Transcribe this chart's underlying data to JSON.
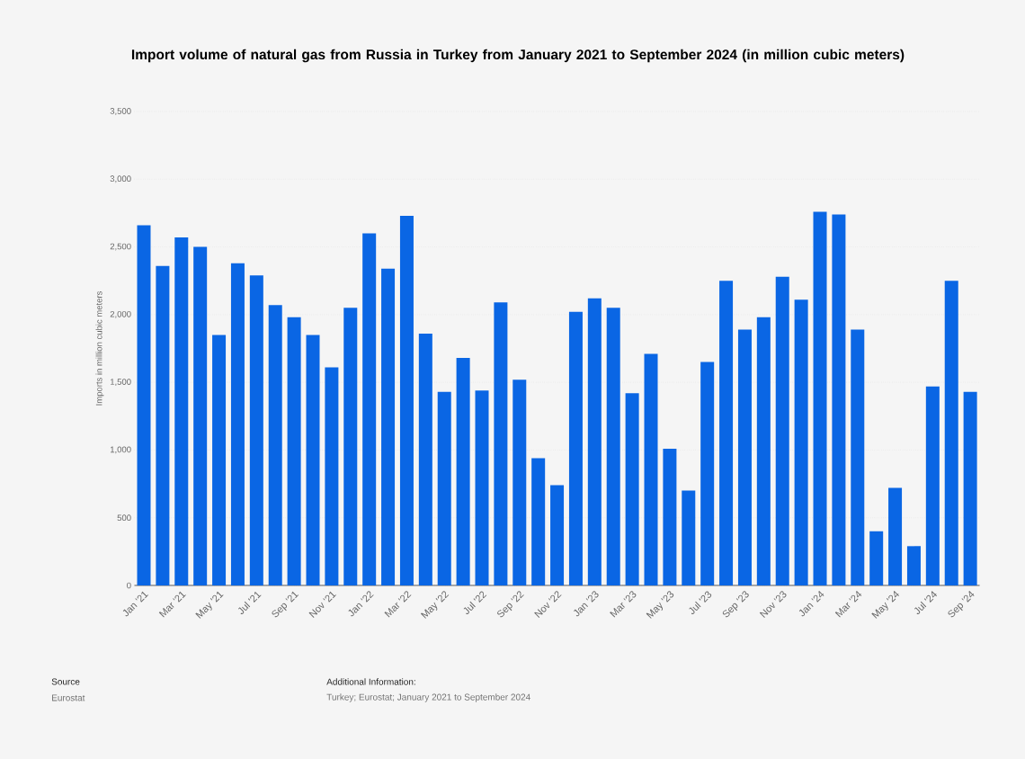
{
  "chart_data": {
    "type": "bar",
    "title": "Import volume of natural gas from Russia in Turkey from January 2021 to September 2024 (in million cubic meters)",
    "ylabel": "Imports in million cubic meters",
    "categories": [
      "Jan '21",
      null,
      "Mar '21",
      null,
      "May '21",
      null,
      "Jul '21",
      null,
      "Sep '21",
      null,
      "Nov '21",
      null,
      "Jan '22",
      null,
      "Mar '22",
      null,
      "May '22",
      null,
      "Jul '22",
      null,
      "Sep '22",
      null,
      "Nov '22",
      null,
      "Jan '23",
      null,
      "Mar '23",
      null,
      "May '23",
      null,
      "Jul '23",
      null,
      "Sep '23",
      null,
      "Nov '23",
      null,
      "Jan '24",
      null,
      "Mar '24",
      null,
      "May '24",
      null,
      "Jul '24",
      null,
      "Sep '24"
    ],
    "values": [
      2660,
      2360,
      2570,
      2500,
      1850,
      2380,
      2290,
      2070,
      1980,
      1850,
      1610,
      2050,
      2600,
      2340,
      2730,
      1860,
      1430,
      1680,
      1440,
      2090,
      1520,
      940,
      740,
      2020,
      2120,
      2050,
      1420,
      1710,
      1010,
      700,
      1650,
      2250,
      1890,
      1980,
      2280,
      2110,
      2760,
      2740,
      1890,
      400,
      720,
      290,
      1470,
      2250,
      1430
    ],
    "color": "#0a66e4",
    "ylim": [
      0,
      3500
    ],
    "yticks": [
      0,
      500,
      {
        "value": 1000,
        "label": "1,000"
      },
      {
        "value": 1500,
        "label": "1,500"
      },
      {
        "value": 2000,
        "label": "2,000"
      },
      {
        "value": 2500,
        "label": "2,500"
      },
      {
        "value": 3000,
        "label": "3,000"
      },
      {
        "value": 3500,
        "label": "3,500"
      }
    ],
    "grid": "y",
    "annotations": [
      "Source",
      "Eurostat",
      "Additional Information:",
      "Turkey; Eurostat; January 2021 to September 2024"
    ]
  }
}
